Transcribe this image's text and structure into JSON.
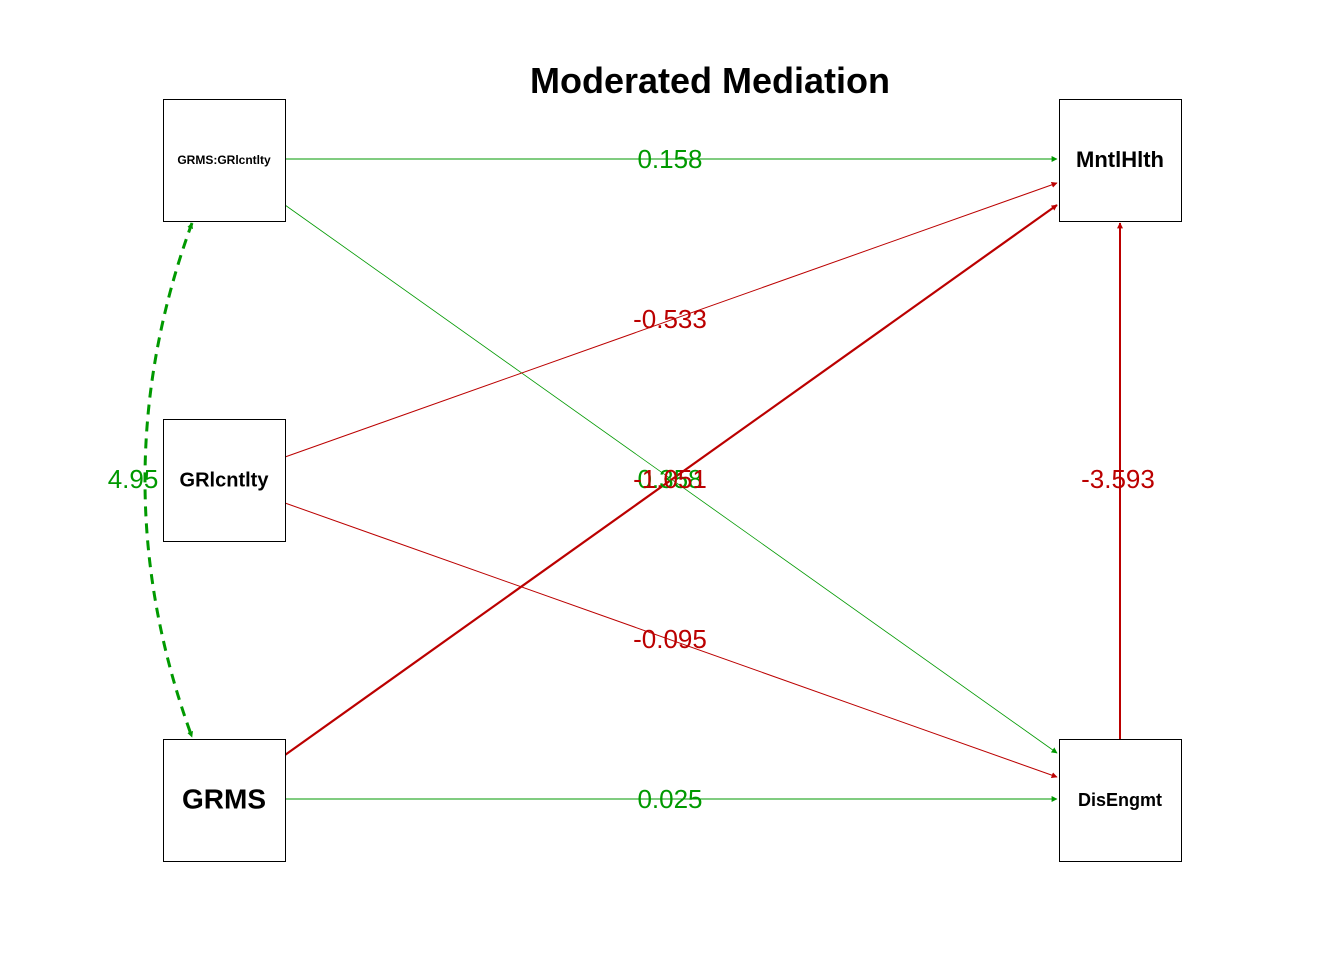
{
  "title": "Moderated Mediation",
  "colors": {
    "positive": "#009900",
    "negative": "#BB0000",
    "node_border": "#000000"
  },
  "nodes": [
    {
      "id": "grms_grlcntlty",
      "label": "GRMS:GRlcntlty"
    },
    {
      "id": "grlcntlty",
      "label": "GRlcntlty"
    },
    {
      "id": "grms",
      "label": "GRMS"
    },
    {
      "id": "mntlhlth",
      "label": "MntlHlth"
    },
    {
      "id": "disengmt",
      "label": "DisEngmt"
    }
  ],
  "edges": [
    {
      "from": "grms_grlcntlty",
      "to": "mntlhlth",
      "label": "0.158",
      "sign": "positive",
      "style": "solid"
    },
    {
      "from": "grms_grlcntlty",
      "to": "disengmt",
      "label": "0.358",
      "sign": "positive",
      "style": "solid"
    },
    {
      "from": "grlcntlty",
      "to": "mntlhlth",
      "label": "-0.533",
      "sign": "negative",
      "style": "solid"
    },
    {
      "from": "grlcntlty",
      "to": "disengmt",
      "label": "-0.095",
      "sign": "negative",
      "style": "solid"
    },
    {
      "from": "grms",
      "to": "mntlhlth",
      "label": "-1.051",
      "sign": "negative",
      "style": "solid"
    },
    {
      "from": "grms",
      "to": "disengmt",
      "label": "0.025",
      "sign": "positive",
      "style": "solid"
    },
    {
      "from": "disengmt",
      "to": "mntlhlth",
      "label": "-3.593",
      "sign": "negative",
      "style": "solid"
    },
    {
      "from": "grms_grlcntlty",
      "to": "grms",
      "label": "4.95",
      "sign": "positive",
      "style": "dashed",
      "bidirectional": true
    }
  ]
}
